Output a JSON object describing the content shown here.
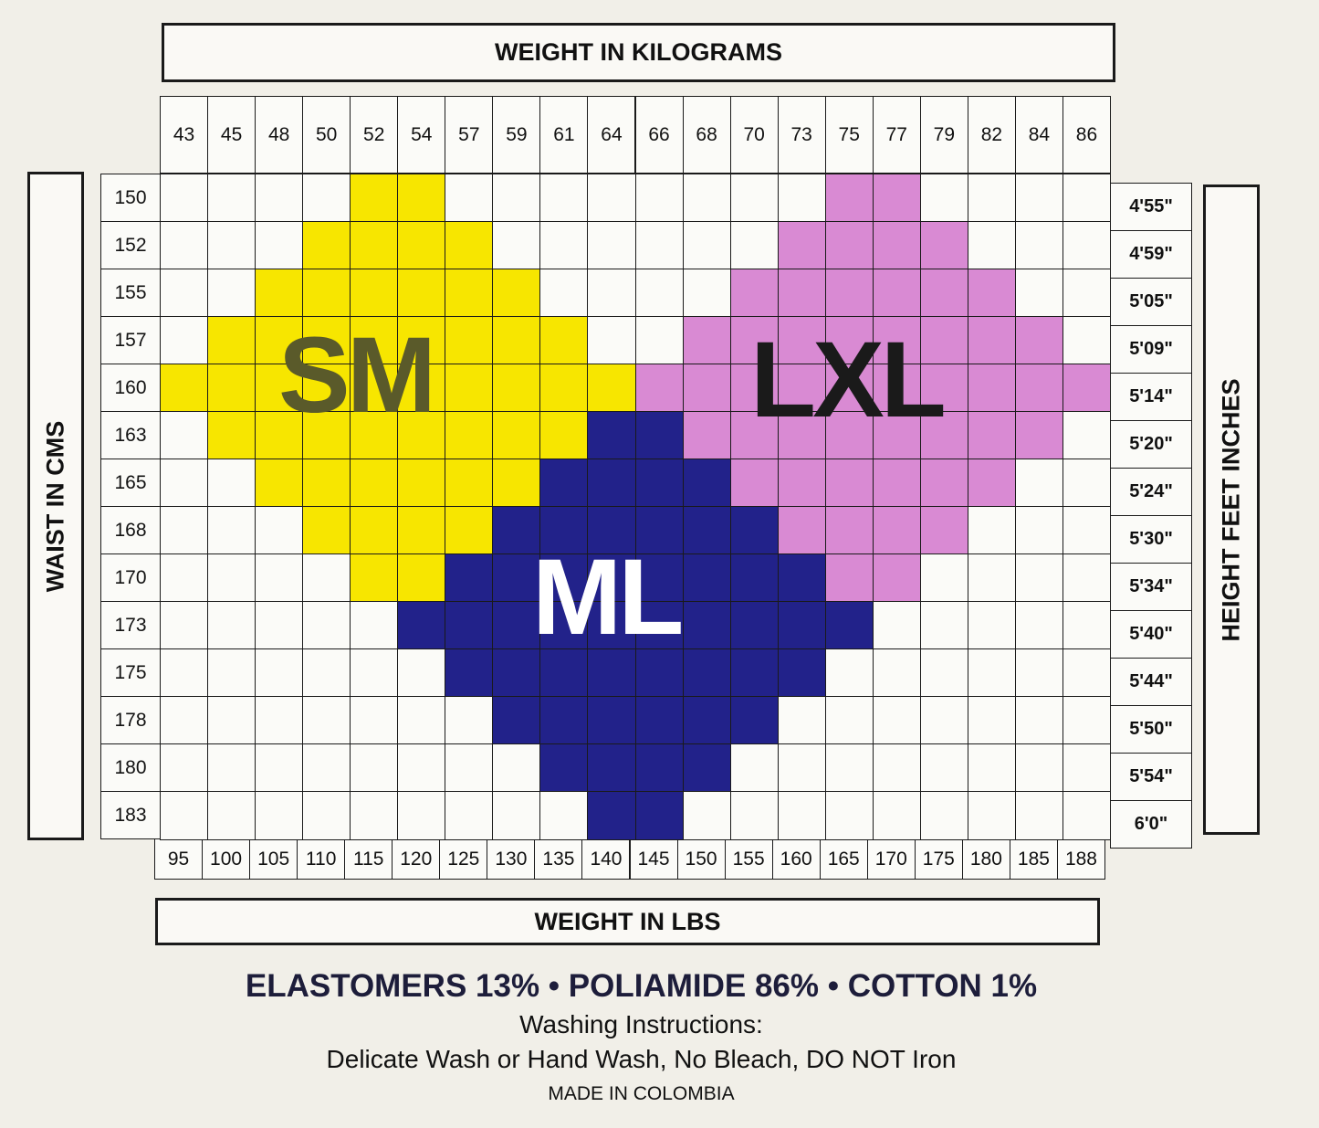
{
  "chart_data": {
    "type": "heatmap",
    "top_axis_title": "WEIGHT IN KILOGRAMS",
    "bottom_axis_title": "WEIGHT IN LBS",
    "left_axis_title": "WAIST IN CMS",
    "right_axis_title": "HEIGHT FEET INCHES",
    "weight_kg": [
      "43",
      "45",
      "48",
      "50",
      "52",
      "54",
      "57",
      "59",
      "61",
      "64",
      "66",
      "68",
      "70",
      "73",
      "75",
      "77",
      "79",
      "82",
      "84",
      "86"
    ],
    "weight_lbs": [
      "95",
      "100",
      "105",
      "110",
      "115",
      "120",
      "125",
      "130",
      "135",
      "140",
      "145",
      "150",
      "155",
      "160",
      "165",
      "170",
      "175",
      "180",
      "185",
      "188"
    ],
    "waist_cm": [
      "150",
      "152",
      "155",
      "157",
      "160",
      "163",
      "165",
      "168",
      "170",
      "173",
      "175",
      "178",
      "180",
      "183"
    ],
    "height_ft_in": [
      "4'55\"",
      "4'59\"",
      "5'05\"",
      "5'09\"",
      "5'14\"",
      "5'20\"",
      "5'24\"",
      "5'30\"",
      "5'34\"",
      "5'40\"",
      "5'44\"",
      "5'50\"",
      "5'54\"",
      "6'0\""
    ],
    "sizes": [
      {
        "code": "S",
        "label": "SM",
        "color": "#f7e600",
        "text_color": "#5a5a2a"
      },
      {
        "code": "M",
        "label": "ML",
        "color": "#22228a",
        "text_color": "#ffffff"
      },
      {
        "code": "L",
        "label": "LXL",
        "color": "#d98ad3",
        "text_color": "#1a1a1a"
      }
    ],
    "grid": [
      "....SS........LL....",
      "...SSSS......LLLL...",
      "..SSSSSS....LLLLLL..",
      ".SSSSSSSS..LLLLLLLL.",
      "SSSSSSSSSSLLLLLLLLLL",
      ".SSSSSSSSMMLLLLLLLL.",
      "..SSSSSSMMMMLLLLLL..",
      "...SSSSMMMMMMLLLL...",
      "....SSMMMMMMMMLL....",
      ".....MMMMMMMMMM.....",
      "......MMMMMMMM......",
      ".......MMMMMM.......",
      "........MMMM........",
      ".........MM........."
    ]
  },
  "footer": {
    "composition": "ELASTOMERS 13% • POLIAMIDE 86% • COTTON 1%",
    "washing_title": "Washing Instructions:",
    "washing_text": "Delicate Wash or Hand Wash, No Bleach, DO NOT Iron",
    "origin": "MADE IN COLOMBIA"
  }
}
